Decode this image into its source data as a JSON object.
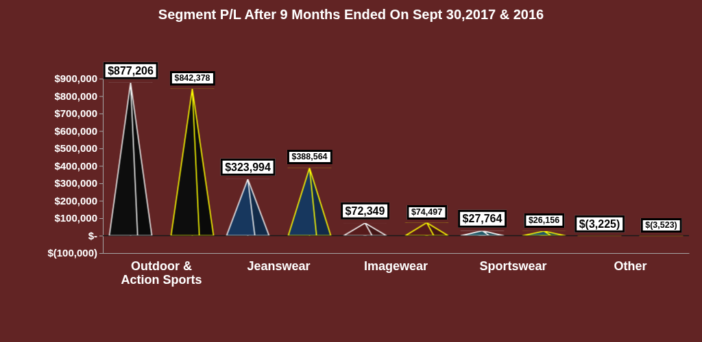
{
  "chart_data": {
    "type": "bar",
    "title": "Segment P/L After 9 Months Ended On Sept 30,2017 & 2016",
    "categories": [
      "Outdoor & Action Sports",
      "Jeanswear",
      "Imagewear",
      "Sportswear",
      "Other"
    ],
    "series": [
      {
        "color": "#f2f2f2",
        "colors": [
          "#0d0d0d",
          "#17375e",
          "#561b1b",
          "#215967",
          "#9c5a14"
        ],
        "values": [
          877206,
          323994,
          72349,
          27764,
          -3225
        ],
        "value_labels": [
          "$877,206",
          "$323,994",
          "$72,349",
          "$27,764",
          "$(3,225)"
        ]
      },
      {
        "color": "#ffff00",
        "colors": [
          "#0d0d0d",
          "#17375e",
          "#561b1b",
          "#215967",
          "#9c5a14"
        ],
        "values": [
          842378,
          388564,
          74497,
          26156,
          -3523
        ],
        "value_labels": [
          "$842,378",
          "$388,564",
          "$74,497",
          "$26,156",
          "$(3,523)"
        ]
      }
    ],
    "ylim": [
      -100000,
      900000
    ],
    "yticks": [
      {
        "value": -100000,
        "label": "$(100,000)"
      },
      {
        "value": 0,
        "label": "$-"
      },
      {
        "value": 100000,
        "label": "$100,000"
      },
      {
        "value": 200000,
        "label": "$200,000"
      },
      {
        "value": 300000,
        "label": "$300,000"
      },
      {
        "value": 400000,
        "label": "$400,000"
      },
      {
        "value": 500000,
        "label": "$500,000"
      },
      {
        "value": 600000,
        "label": "$600,000"
      },
      {
        "value": 700000,
        "label": "$700,000"
      },
      {
        "value": 800000,
        "label": "$800,000"
      },
      {
        "value": 900000,
        "label": "$900,000"
      }
    ]
  }
}
